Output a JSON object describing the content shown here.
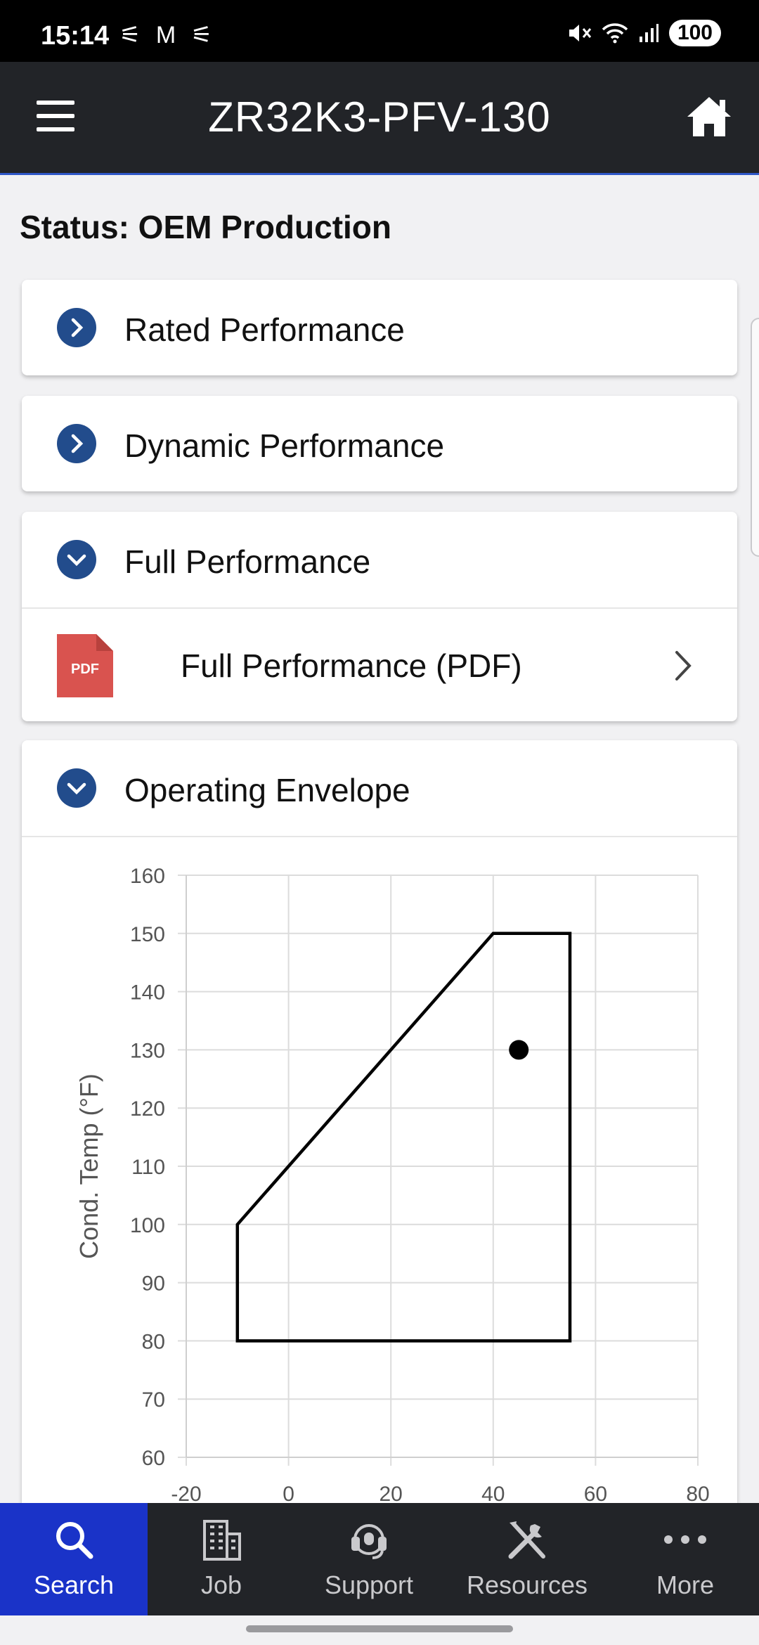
{
  "statusbar": {
    "time": "15:14",
    "notifications": "⚟ M ⚟",
    "battery": "100"
  },
  "appbar": {
    "title": "ZR32K3-PFV-130"
  },
  "page": {
    "status": "Status: OEM Production"
  },
  "sections": [
    {
      "label": "Rated Performance",
      "expanded": false
    },
    {
      "label": "Dynamic Performance",
      "expanded": false
    },
    {
      "label": "Full Performance",
      "expanded": true
    },
    {
      "label": "Operating Envelope",
      "expanded": true
    }
  ],
  "full_performance": {
    "link_label": "Full Performance (PDF)",
    "icon_text": "PDF"
  },
  "chart_data": {
    "type": "scatter",
    "ylabel": "Cond. Temp (°F)",
    "xlabel": "",
    "xlim": [
      -20,
      80
    ],
    "ylim": [
      60,
      160
    ],
    "xticks": [
      -20,
      0,
      20,
      40,
      60,
      80
    ],
    "yticks": [
      60,
      70,
      80,
      90,
      100,
      110,
      120,
      130,
      140,
      150,
      160
    ],
    "grid": true,
    "envelope": [
      [
        -10,
        80
      ],
      [
        -10,
        100
      ],
      [
        40,
        150
      ],
      [
        55,
        150
      ],
      [
        55,
        80
      ]
    ],
    "operating_point": {
      "x": 45,
      "y": 130
    }
  },
  "bottom_nav": [
    {
      "label": "Search",
      "icon": "search-icon",
      "active": true
    },
    {
      "label": "Job",
      "icon": "building-icon",
      "active": false
    },
    {
      "label": "Support",
      "icon": "headset-icon",
      "active": false
    },
    {
      "label": "Resources",
      "icon": "tools-icon",
      "active": false
    },
    {
      "label": "More",
      "icon": "more-icon",
      "active": false
    }
  ],
  "colors": {
    "accent": "#224c8c",
    "nav_active": "#1a33c8",
    "appbar": "#222428",
    "pdf": "#d9534f"
  }
}
